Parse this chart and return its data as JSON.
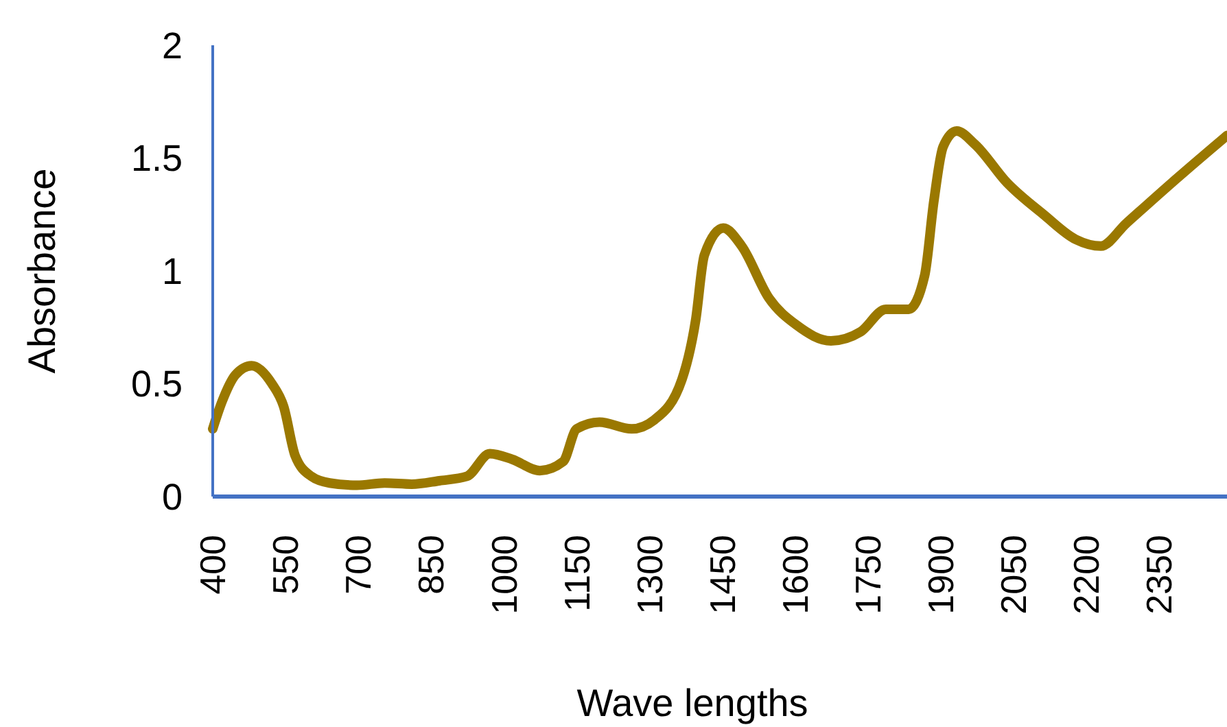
{
  "chart_data": {
    "type": "line",
    "xlabel": "Wave lengths",
    "ylabel": "Absorbance",
    "x": [
      400,
      419,
      447,
      480,
      522,
      546,
      570,
      603,
      641,
      697,
      754,
      810,
      867,
      924,
      971,
      1017,
      1074,
      1122,
      1150,
      1197,
      1263,
      1310,
      1367,
      1395,
      1413,
      1452,
      1490,
      1546,
      1603,
      1674,
      1735,
      1787,
      1834,
      1867,
      1886,
      1905,
      1933,
      1971,
      2037,
      2112,
      2178,
      2230,
      2282,
      2376,
      2490
    ],
    "series": [
      {
        "color": "#9a7800",
        "values": [
          0.3,
          0.42,
          0.54,
          0.58,
          0.5,
          0.4,
          0.18,
          0.09,
          0.06,
          0.05,
          0.06,
          0.055,
          0.07,
          0.09,
          0.19,
          0.165,
          0.115,
          0.155,
          0.3,
          0.33,
          0.3,
          0.34,
          0.52,
          0.78,
          1.07,
          1.19,
          1.11,
          0.88,
          0.76,
          0.69,
          0.73,
          0.83,
          0.83,
          0.98,
          1.31,
          1.55,
          1.62,
          1.56,
          1.39,
          1.25,
          1.14,
          1.11,
          1.21,
          1.39,
          1.6
        ]
      }
    ],
    "xlim": [
      400,
      2490
    ],
    "xticks": [
      400,
      550,
      700,
      850,
      1000,
      1150,
      1300,
      1450,
      1600,
      1750,
      1900,
      2050,
      2200,
      2350
    ],
    "ylim": [
      0,
      2
    ],
    "yticks": [
      0,
      0.5,
      1,
      1.5,
      2
    ],
    "grid": false,
    "marker": "none",
    "line_style": "solid"
  }
}
